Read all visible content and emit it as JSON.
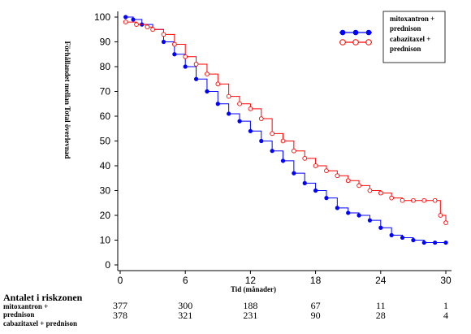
{
  "chart_data": {
    "type": "line",
    "title": "",
    "xlabel": "Tid (månader)",
    "ylabel": "Förhållandet mellan Total överlevnad",
    "xlim": [
      0,
      30
    ],
    "ylim": [
      0,
      100
    ],
    "x_ticks": [
      0,
      6,
      12,
      18,
      24,
      30
    ],
    "y_ticks": [
      0,
      10,
      20,
      30,
      40,
      50,
      60,
      70,
      80,
      90,
      100
    ],
    "grid": false,
    "legend_position": "top-right",
    "series": [
      {
        "name": "mitoxantron + prednison",
        "color": "#0000ff",
        "marker": "filled-circle",
        "points": [
          [
            0.5,
            100
          ],
          [
            1.2,
            99
          ],
          [
            2,
            97
          ],
          [
            3,
            95
          ],
          [
            4,
            90
          ],
          [
            5,
            85
          ],
          [
            6,
            80
          ],
          [
            7,
            75
          ],
          [
            8,
            70
          ],
          [
            9,
            65
          ],
          [
            10,
            61
          ],
          [
            11,
            58
          ],
          [
            12,
            54
          ],
          [
            13,
            50
          ],
          [
            14,
            46
          ],
          [
            15,
            42
          ],
          [
            16,
            37
          ],
          [
            17,
            33
          ],
          [
            18,
            30
          ],
          [
            19,
            27
          ],
          [
            20,
            23
          ],
          [
            21,
            21
          ],
          [
            22,
            20
          ],
          [
            23,
            18
          ],
          [
            24,
            15
          ],
          [
            25,
            12
          ],
          [
            26,
            11
          ],
          [
            27,
            10
          ],
          [
            28,
            9
          ],
          [
            29,
            9
          ],
          [
            30,
            9
          ]
        ]
      },
      {
        "name": "cabazitaxel + prednison",
        "color": "#ff0000",
        "marker": "open-circle",
        "points": [
          [
            0.5,
            98
          ],
          [
            1.5,
            97
          ],
          [
            2.5,
            96
          ],
          [
            3,
            95
          ],
          [
            4,
            93
          ],
          [
            5,
            89
          ],
          [
            6,
            84
          ],
          [
            7,
            81
          ],
          [
            8,
            77
          ],
          [
            9,
            73
          ],
          [
            10,
            68
          ],
          [
            11,
            65
          ],
          [
            12,
            63
          ],
          [
            13,
            59
          ],
          [
            14,
            53
          ],
          [
            15,
            50
          ],
          [
            16,
            46
          ],
          [
            17,
            43
          ],
          [
            18,
            40
          ],
          [
            19,
            38
          ],
          [
            20,
            36
          ],
          [
            21,
            34
          ],
          [
            22,
            32
          ],
          [
            23,
            30
          ],
          [
            24,
            29
          ],
          [
            25,
            27
          ],
          [
            26,
            26
          ],
          [
            27,
            26
          ],
          [
            28,
            26
          ],
          [
            29,
            26
          ],
          [
            29.5,
            20
          ],
          [
            30,
            17
          ]
        ]
      }
    ],
    "risk_table": {
      "title": "Antalet i riskzonen",
      "time_points": [
        0,
        6,
        12,
        18,
        24,
        30
      ],
      "rows": [
        {
          "label_line1": "mitoxantron +",
          "label_line2": "prednison",
          "values": [
            "377",
            "300",
            "188",
            "67",
            "11",
            "1"
          ]
        },
        {
          "label_line1": "cabazitaxel + prednison",
          "label_line2": "",
          "values": [
            "378",
            "321",
            "231",
            "90",
            "28",
            "4"
          ]
        }
      ]
    }
  },
  "legend": {
    "entries": [
      {
        "line1": "mitoxantron +",
        "line2": "prednison"
      },
      {
        "line1": "cabazitaxel +",
        "line2": "prednison"
      }
    ]
  }
}
